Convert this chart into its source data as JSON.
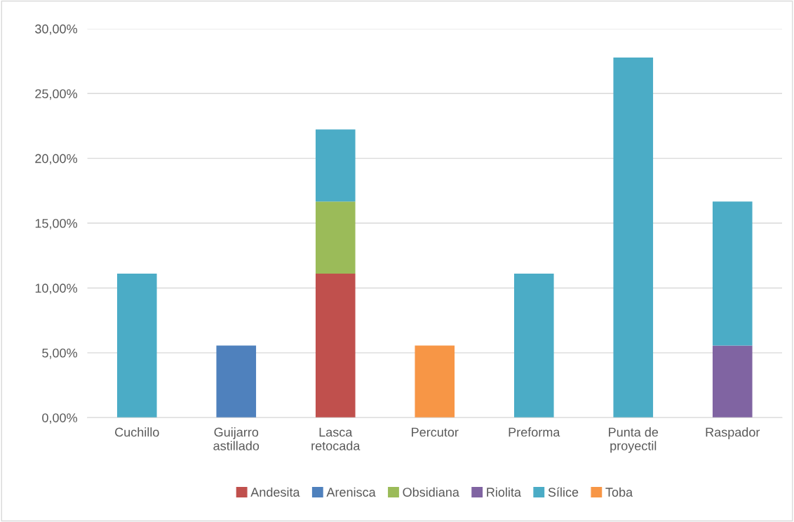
{
  "chart_data": {
    "type": "bar",
    "stacked": true,
    "categories": [
      "Cuchillo",
      "Guijarro\nastillado",
      "Lasca\nretocada",
      "Percutor",
      "Preforma",
      "Punta de\nproyectil",
      "Raspador"
    ],
    "series": [
      {
        "name": "Andesita",
        "color": "#c0504d",
        "values": [
          null,
          null,
          11.11,
          null,
          null,
          null,
          null
        ]
      },
      {
        "name": "Arenisca",
        "color": "#4f81bd",
        "values": [
          null,
          5.56,
          null,
          null,
          null,
          null,
          null
        ]
      },
      {
        "name": "Obsidiana",
        "color": "#9bbb59",
        "values": [
          null,
          null,
          5.56,
          null,
          null,
          null,
          null
        ]
      },
      {
        "name": "Riolita",
        "color": "#8064a2",
        "values": [
          null,
          null,
          null,
          null,
          null,
          null,
          5.56
        ]
      },
      {
        "name": "Sílice",
        "color": "#4bacc6",
        "values": [
          11.11,
          null,
          5.56,
          null,
          11.11,
          27.78,
          11.11
        ]
      },
      {
        "name": "Toba",
        "color": "#f79646",
        "values": [
          null,
          null,
          null,
          5.56,
          null,
          null,
          null
        ]
      }
    ],
    "ylim": [
      0,
      30
    ],
    "yticks": [
      {
        "value": 0,
        "label": "0,00%"
      },
      {
        "value": 5,
        "label": "5,00%"
      },
      {
        "value": 10,
        "label": "10,00%"
      },
      {
        "value": 15,
        "label": "15,00%"
      },
      {
        "value": 20,
        "label": "20,00%"
      },
      {
        "value": 25,
        "label": "25,00%"
      },
      {
        "value": 30,
        "label": "30,00%"
      }
    ],
    "grid": "y",
    "legend": "bottom"
  }
}
